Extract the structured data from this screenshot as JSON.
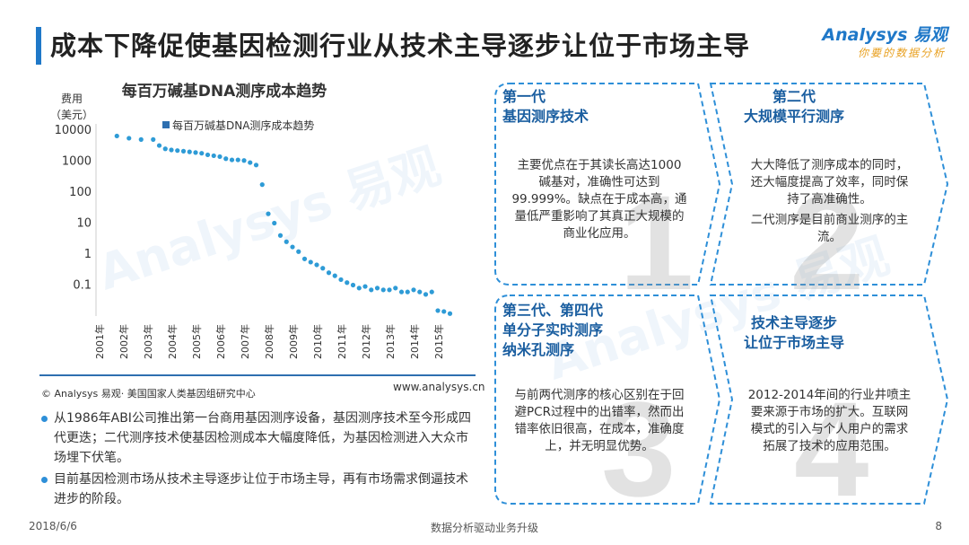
{
  "slide": {
    "title": "成本下降促使基因检测行业从技术主导逐步让位于市场主导",
    "logo_main": "Analysys 易观",
    "logo_sub": "你要的数据分析",
    "brand_color": "#1f78c8",
    "watermark": "Analysys 易观",
    "source": "© Analysys 易观· 美国国家人类基因组研究中心",
    "website": "www.analysys.cn",
    "bullets": [
      "从1986年ABI公司推出第一台商用基因测序设备，基因测序技术至今形成四代更迭；二代测序技术使基因检测成本大幅度降低，为基因检测进入大众市场埋下伏笔。",
      "目前基因检测市场从技术主导逐步让位于市场主导，再有市场需求倒逼技术进步的阶段。"
    ],
    "footer_date": "2018/6/6",
    "footer_center": "数据分析驱动业务升级",
    "page_number": "8"
  },
  "chart_data": {
    "type": "scatter",
    "title": "每百万碱基DNA测序成本趋势",
    "ylabel": "费用（美元）",
    "xlabel": "",
    "y_scale": "log",
    "ylim": [
      0.01,
      10000
    ],
    "yticks": [
      10000,
      1000,
      100,
      10,
      1,
      0.1
    ],
    "ytick_labels": [
      "10000",
      "1000",
      "100",
      "10",
      "1",
      "0.1"
    ],
    "xlim": [
      2001,
      2016
    ],
    "xtick_labels": [
      "2001年",
      "2002年",
      "2003年",
      "2004年",
      "2005年",
      "2006年",
      "2007年",
      "2008年",
      "2009年",
      "2010年",
      "2011年",
      "2012年",
      "2013年",
      "2014年",
      "2015年"
    ],
    "legend": {
      "label": "每百万碱基DNA测序成本趋势",
      "position": "top"
    },
    "color": "#2e9bd6",
    "grid": false,
    "series": [
      {
        "name": "每百万碱基DNA测序成本趋势",
        "x": [
          2001.75,
          2002.25,
          2002.75,
          2003.25,
          2003.5,
          2003.75,
          2004.0,
          2004.25,
          2004.5,
          2004.75,
          2005.0,
          2005.25,
          2005.5,
          2005.75,
          2006.0,
          2006.25,
          2006.5,
          2006.75,
          2007.0,
          2007.25,
          2007.5,
          2007.75,
          2008.0,
          2008.25,
          2008.5,
          2008.75,
          2009.0,
          2009.25,
          2009.5,
          2009.75,
          2010.0,
          2010.25,
          2010.5,
          2010.75,
          2011.0,
          2011.25,
          2011.5,
          2011.75,
          2012.0,
          2012.25,
          2012.5,
          2012.75,
          2013.0,
          2013.25,
          2013.5,
          2013.75,
          2014.0,
          2014.25,
          2014.5,
          2014.75,
          2015.0,
          2015.25,
          2015.5
        ],
        "y": [
          6500,
          5500,
          5000,
          5000,
          3200,
          2500,
          2300,
          2200,
          2100,
          2000,
          1900,
          1800,
          1600,
          1500,
          1400,
          1200,
          1100,
          1100,
          1050,
          900,
          750,
          175,
          20,
          10,
          4,
          2.5,
          1.7,
          1.2,
          0.7,
          0.55,
          0.45,
          0.35,
          0.25,
          0.2,
          0.15,
          0.12,
          0.1,
          0.08,
          0.09,
          0.07,
          0.08,
          0.07,
          0.07,
          0.08,
          0.06,
          0.06,
          0.07,
          0.06,
          0.05,
          0.06,
          0.015,
          0.014,
          0.012
        ]
      }
    ]
  },
  "diagram": {
    "panels": [
      {
        "number": "1",
        "title": "第一代\n基因测序技术",
        "body": [
          "主要优点在于其读长高达1000 碱基对，准确性可达到99.999%。缺点在于成本高，通量低严重影响了其真正大规模的商业化应用。"
        ]
      },
      {
        "number": "2",
        "title": "第二代\n大规模平行测序",
        "body": [
          "大大降低了测序成本的同时，还大幅度提高了效率，同时保持了高准确性。",
          "二代测序是目前商业测序的主流。"
        ]
      },
      {
        "number": "3",
        "title": "第三代、第四代\n单分子实时测序\n纳米孔测序",
        "body": [
          "与前两代测序的核心区别在于回避PCR过程中的出错率，然而出错率依旧很高，在成本，准确度上，并无明显优势。"
        ]
      },
      {
        "number": "4",
        "title": "技术主导逐步\n让位于市场主导",
        "body": [
          "2012-2014年间的行业井喷主要来源于市场的扩大。互联网模式的引入与个人用户的需求拓展了技术的应用范围。"
        ]
      }
    ],
    "border_color": "#2e8fd8",
    "title_color": "#1a5ea0"
  }
}
